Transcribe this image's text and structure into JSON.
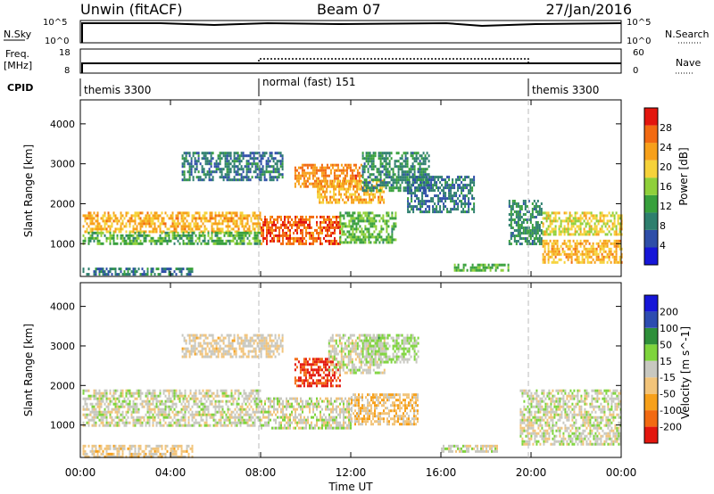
{
  "header": {
    "title": "Unwin (fitACF)",
    "beam": "Beam 07",
    "date": "27/Jan/2016"
  },
  "top_panels": {
    "nsky_label": "N.Sky",
    "nsky_ticks": [
      "10^5",
      "10^0"
    ],
    "nsearch_label": "N.Search",
    "nsearch_ticks": [
      "10^5",
      "10^0"
    ],
    "freq_label": "Freq.",
    "freq_unit": "[MHz]",
    "freq_ticks": [
      "18",
      "8"
    ],
    "nave_label": "Nave",
    "nave_ticks": [
      "60",
      "0"
    ],
    "cpid_label": "CPID",
    "cpid_segments": [
      {
        "label": "themis 3300",
        "start": 0,
        "end": 8
      },
      {
        "label": "normal (fast) 151",
        "start": 8,
        "end": 20
      },
      {
        "label": "themis 3300",
        "start": 20,
        "end": 24
      }
    ]
  },
  "x_axis": {
    "label": "Time UT",
    "ticks": [
      "00:00",
      "04:00",
      "08:00",
      "12:00",
      "16:00",
      "20:00",
      "00:00"
    ],
    "range_hours": [
      0,
      24
    ]
  },
  "colors": {
    "power_scale": [
      "#1616d8",
      "#2e4ea8",
      "#2e7f6e",
      "#38a03c",
      "#8fd03a",
      "#f6d23a",
      "#f7a01a",
      "#f26a12",
      "#e3160e"
    ],
    "velocity_scale": [
      "#e3160e",
      "#f26a12",
      "#f7a01a",
      "#f2c47a",
      "#c8c8c0",
      "#7ed43c",
      "#2e8f3a",
      "#2d4cb0",
      "#1616d8"
    ]
  },
  "chart_data": [
    {
      "type": "heatmap",
      "name": "power",
      "ylabel": "Slant Range [km]",
      "ylim": [
        180,
        4600
      ],
      "yticks": [
        "1000",
        "2000",
        "3000",
        "4000"
      ],
      "colorbar_label": "Power [dB]",
      "colorbar_ticks": [
        "4",
        "8",
        "12",
        "16",
        "20",
        "24",
        "28"
      ],
      "colorbar_range": [
        0,
        32
      ],
      "regions": [
        {
          "t0": 0.1,
          "t1": 8.0,
          "r0": 1300,
          "r1": 1800,
          "level": 22
        },
        {
          "t0": 0.1,
          "t1": 8.0,
          "r0": 1000,
          "r1": 1300,
          "level": 13
        },
        {
          "t0": 0.1,
          "t1": 5.0,
          "r0": 200,
          "r1": 400,
          "level": 8
        },
        {
          "t0": 4.5,
          "t1": 9.0,
          "r0": 2600,
          "r1": 3300,
          "level": 8
        },
        {
          "t0": 8.0,
          "t1": 11.5,
          "r0": 1000,
          "r1": 1700,
          "level": 27
        },
        {
          "t0": 9.5,
          "t1": 12.5,
          "r0": 2400,
          "r1": 3000,
          "level": 25
        },
        {
          "t0": 10.5,
          "t1": 13.5,
          "r0": 2000,
          "r1": 2600,
          "level": 22
        },
        {
          "t0": 11.5,
          "t1": 14.0,
          "r0": 1000,
          "r1": 1800,
          "level": 14
        },
        {
          "t0": 12.5,
          "t1": 15.5,
          "r0": 2300,
          "r1": 3300,
          "level": 10
        },
        {
          "t0": 14.5,
          "t1": 17.5,
          "r0": 1800,
          "r1": 2700,
          "level": 8
        },
        {
          "t0": 16.5,
          "t1": 19.0,
          "r0": 300,
          "r1": 500,
          "level": 14
        },
        {
          "t0": 19.0,
          "t1": 20.5,
          "r0": 1000,
          "r1": 2100,
          "level": 10
        },
        {
          "t0": 20.5,
          "t1": 24.0,
          "r0": 1200,
          "r1": 1800,
          "level": 19
        },
        {
          "t0": 20.5,
          "t1": 24.0,
          "r0": 500,
          "r1": 1100,
          "level": 22
        }
      ]
    },
    {
      "type": "heatmap",
      "name": "velocity",
      "ylabel": "Slant Range [km]",
      "ylim": [
        180,
        4600
      ],
      "yticks": [
        "1000",
        "2000",
        "3000",
        "4000"
      ],
      "colorbar_label": "Velocity [m s^-1]",
      "colorbar_ticks": [
        "200",
        "100",
        "50",
        "15",
        "-15",
        "-50",
        "-100",
        "-200"
      ],
      "colorbar_range": [
        -250,
        250
      ],
      "regions": [
        {
          "t0": 0.1,
          "t1": 8.0,
          "r0": 1000,
          "r1": 1900,
          "level": 0
        },
        {
          "t0": 0.1,
          "t1": 5.0,
          "r0": 200,
          "r1": 500,
          "level": -40
        },
        {
          "t0": 4.5,
          "t1": 9.0,
          "r0": 2700,
          "r1": 3300,
          "level": -30
        },
        {
          "t0": 8.0,
          "t1": 12.0,
          "r0": 900,
          "r1": 1700,
          "level": 0
        },
        {
          "t0": 9.5,
          "t1": 11.5,
          "r0": 2000,
          "r1": 2700,
          "level": -200
        },
        {
          "t0": 11.0,
          "t1": 13.5,
          "r0": 2300,
          "r1": 3300,
          "level": 0
        },
        {
          "t0": 12.0,
          "t1": 15.0,
          "r0": 1000,
          "r1": 1800,
          "level": -60
        },
        {
          "t0": 12.5,
          "t1": 15.0,
          "r0": 2600,
          "r1": 3300,
          "level": 30
        },
        {
          "t0": 16.0,
          "t1": 18.5,
          "r0": 300,
          "r1": 500,
          "level": 0
        },
        {
          "t0": 19.5,
          "t1": 24.0,
          "r0": 500,
          "r1": 1900,
          "level": 0
        }
      ]
    }
  ]
}
